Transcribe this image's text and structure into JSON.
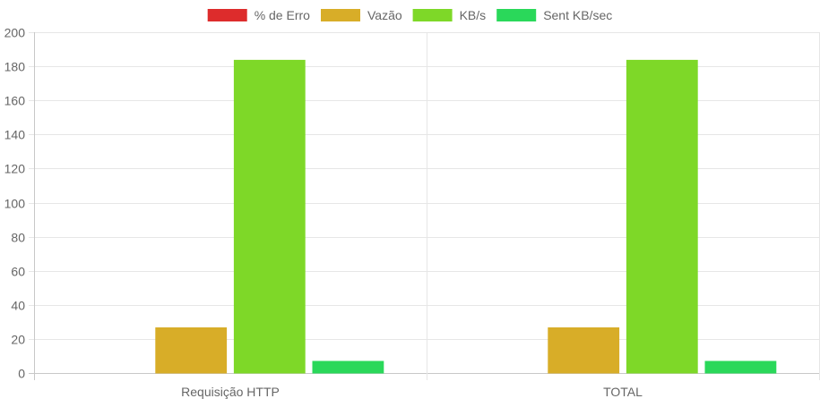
{
  "chart_data": {
    "type": "bar",
    "categories": [
      "Requisição HTTP",
      "TOTAL"
    ],
    "series": [
      {
        "name": "% de Erro",
        "values": [
          0,
          0
        ],
        "color": "#dd2c2c"
      },
      {
        "name": "Vazão",
        "values": [
          26.5,
          26.5
        ],
        "color": "#d8ad28"
      },
      {
        "name": "KB/s",
        "values": [
          183.5,
          183.5
        ],
        "color": "#7ed828"
      },
      {
        "name": "Sent KB/sec",
        "values": [
          6.8,
          6.8
        ],
        "color": "#2ad85a"
      }
    ],
    "ylim": [
      0,
      200
    ],
    "yticks": [
      0,
      20,
      40,
      60,
      80,
      100,
      120,
      140,
      160,
      180,
      200
    ],
    "grid": true,
    "legend_position": "top-center"
  }
}
